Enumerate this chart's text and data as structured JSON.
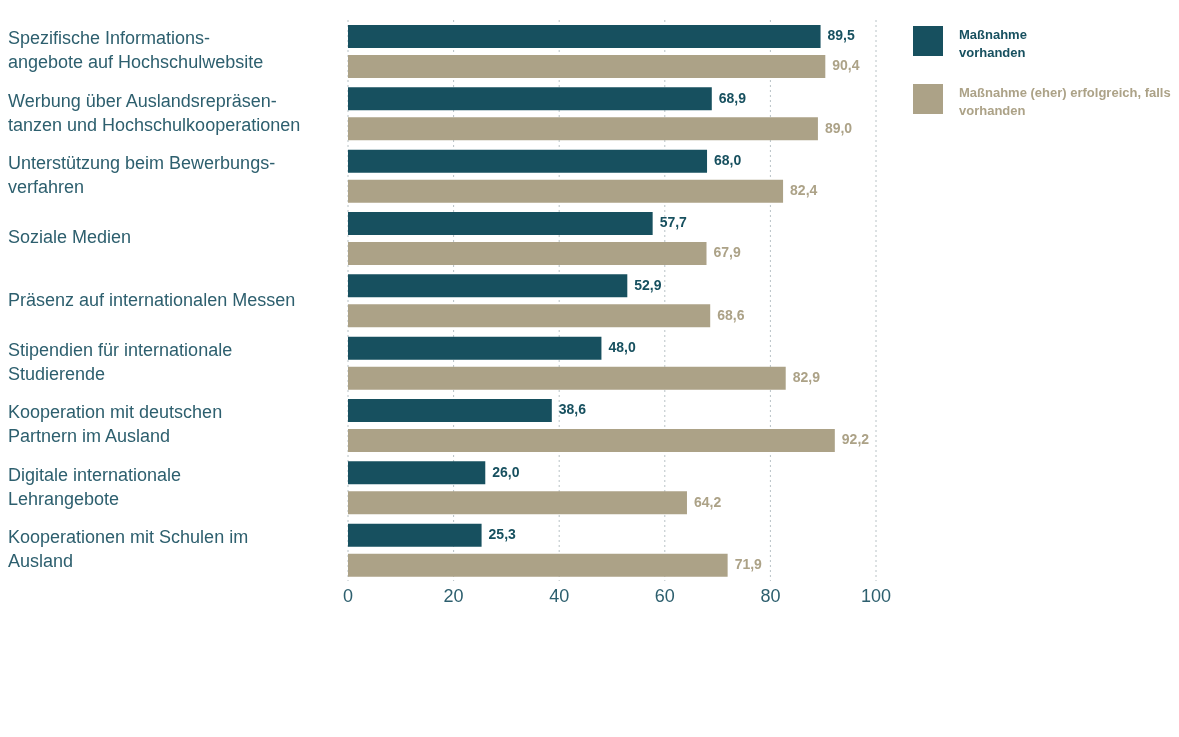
{
  "chart_data": {
    "type": "bar",
    "orientation": "horizontal",
    "categories": [
      "Spezifische Informations-\nangebote auf Hochschulwebsite",
      "Werbung über Auslandsrepräsen-\ntanzen und Hochschulkooperationen",
      "Unterstützung beim Bewerbungs-\nverfahren",
      "Soziale Medien",
      "Präsenz auf internationalen Messen",
      "Stipendien für internationale\nStudierende",
      "Kooperation mit deutschen\nPartnern im Ausland",
      "Digitale internationale\nLehrangebote",
      "Kooperationen mit Schulen im\nAusland"
    ],
    "series": [
      {
        "name": "Maßnahme vorhanden",
        "color": "#17505f",
        "values": [
          89.5,
          68.9,
          68.0,
          57.7,
          52.9,
          48.0,
          38.6,
          26.0,
          25.3
        ],
        "value_labels": [
          "89,5",
          "68,9",
          "68,0",
          "57,7",
          "52,9",
          "48,0",
          "38,6",
          "26,0",
          "25,3"
        ]
      },
      {
        "name": "Maßnahme (eher) erfolgreich, falls vorhanden",
        "color": "#aca287",
        "values": [
          90.4,
          89.0,
          82.4,
          67.9,
          68.6,
          82.9,
          92.2,
          64.2,
          71.9
        ],
        "value_labels": [
          "90,4",
          "89,0",
          "82,4",
          "67,9",
          "68,6",
          "82,9",
          "92,2",
          "64,2",
          "71,9"
        ]
      }
    ],
    "xlim": [
      0,
      100
    ],
    "xticks": [
      0,
      20,
      40,
      60,
      80,
      100
    ],
    "grid": "x",
    "legend": "top right"
  }
}
